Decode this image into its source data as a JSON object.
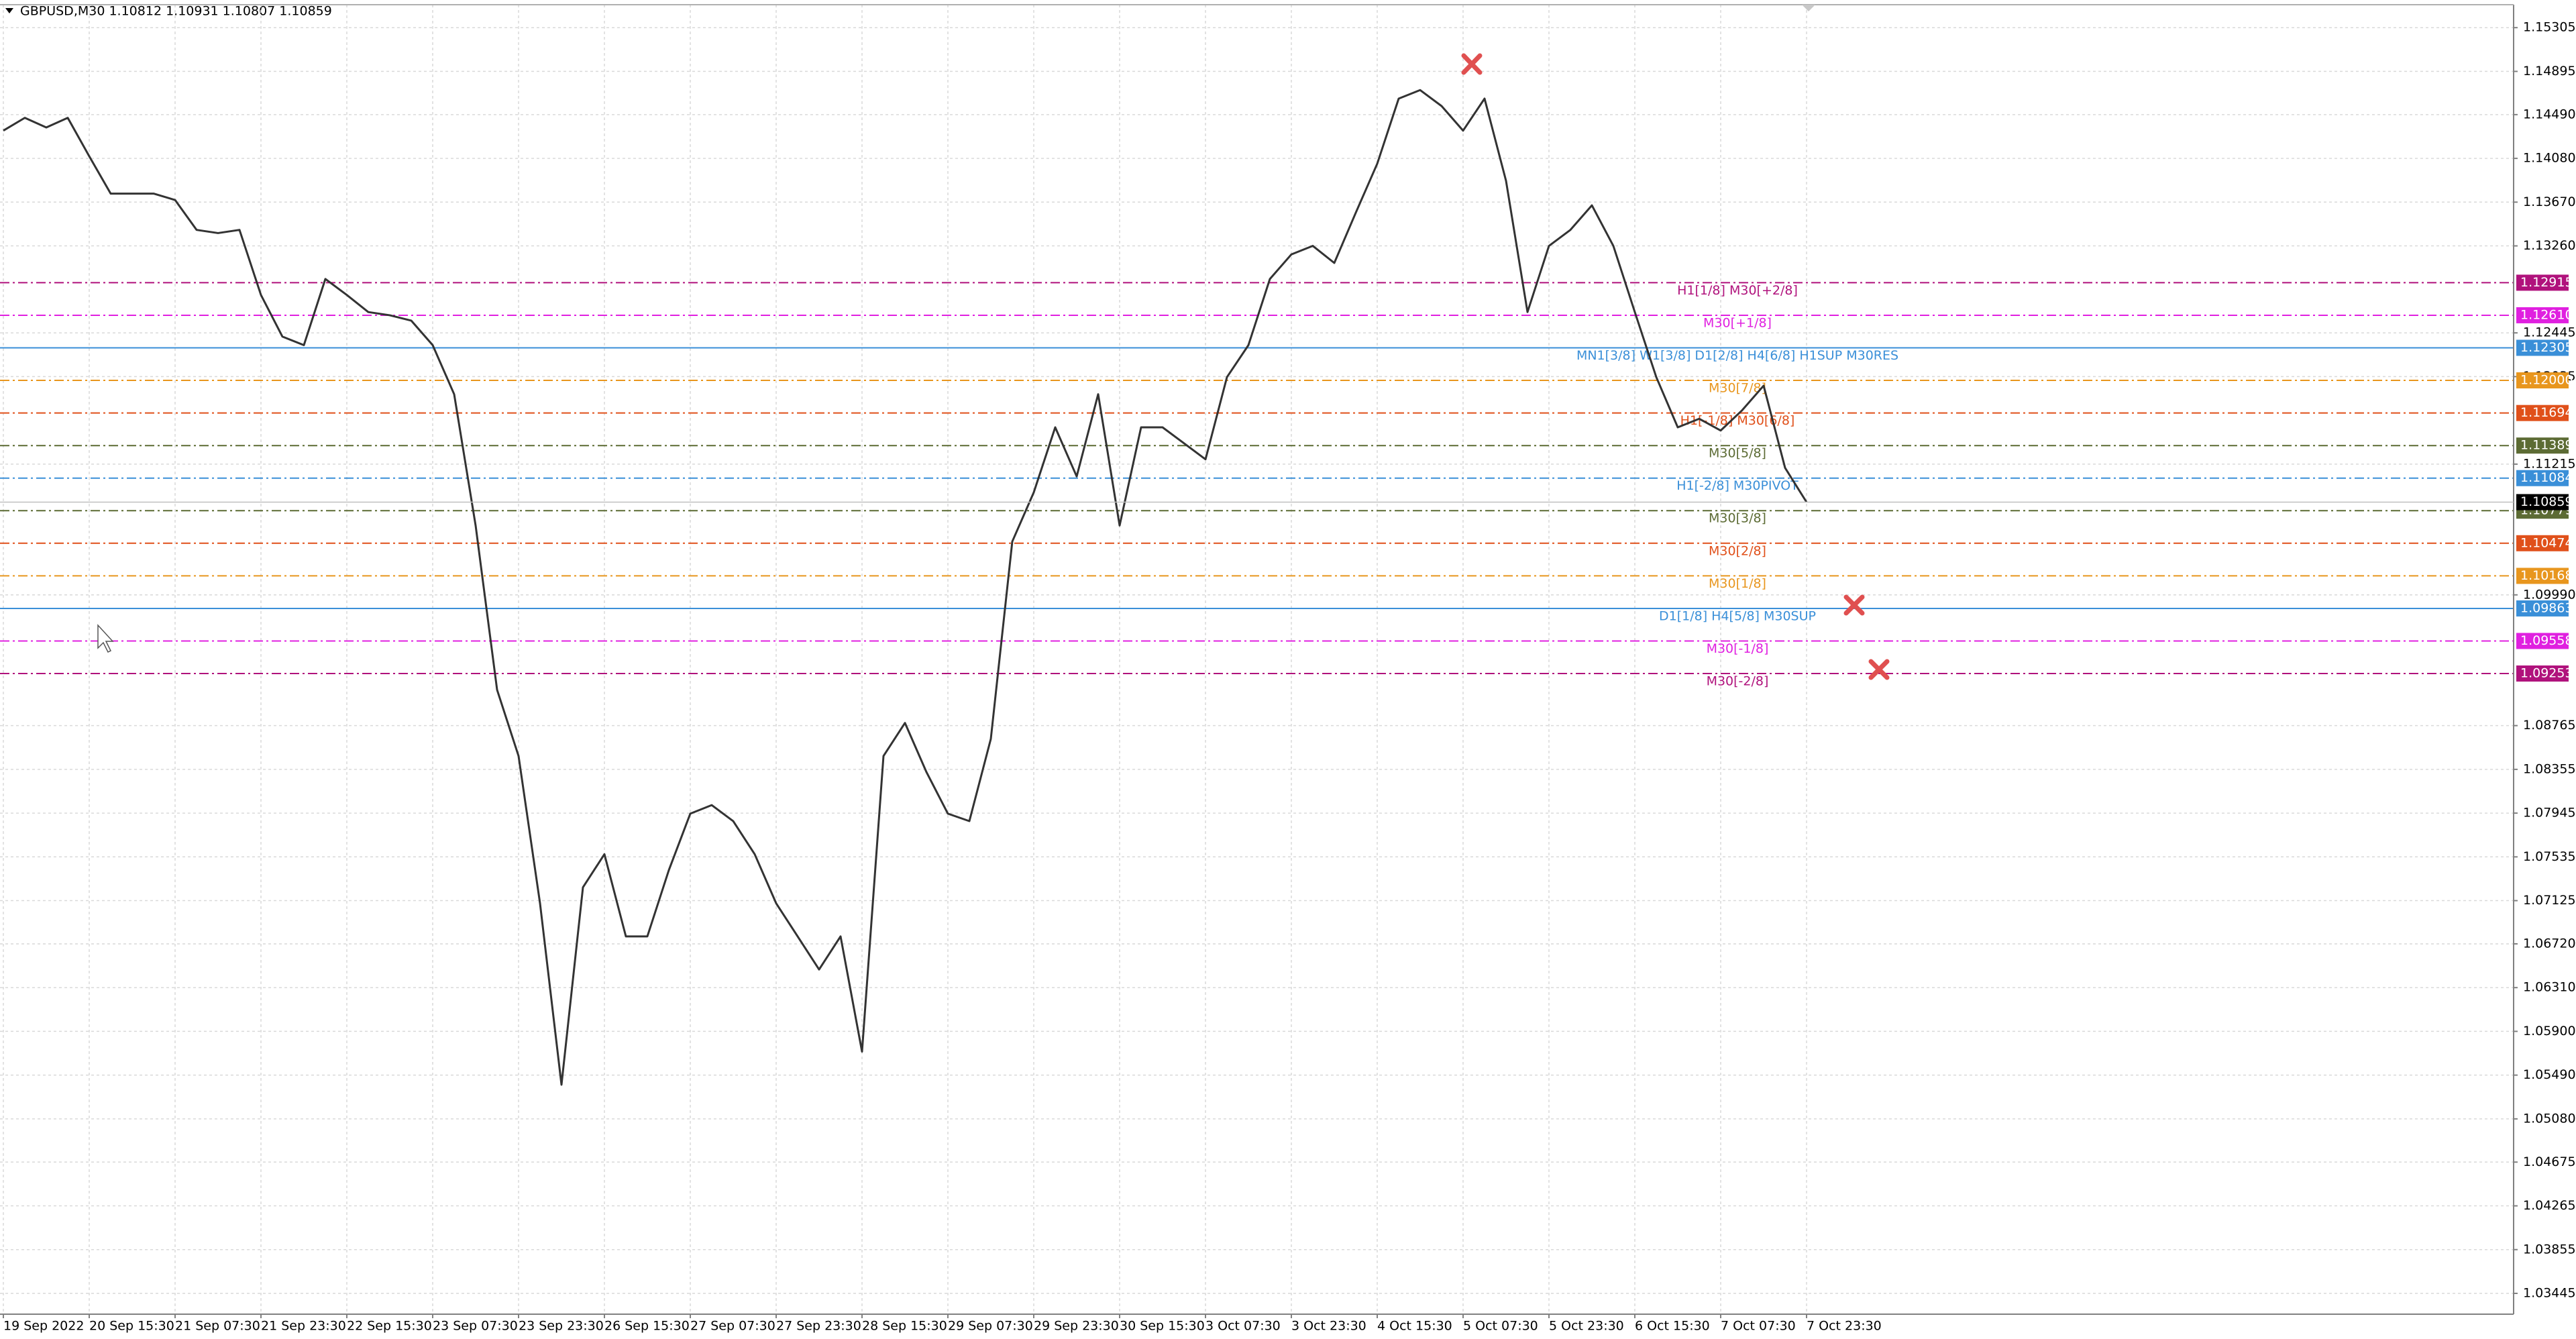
{
  "chart_data": {
    "type": "line",
    "title": "GBPUSD,M30  1.10812 1.10931 1.10807 1.10859",
    "color": "#333333",
    "grid": true,
    "categories": [
      "19 Sep 2022",
      null,
      null,
      null,
      "20 Sep 15:30",
      null,
      null,
      null,
      "21 Sep 07:30",
      null,
      null,
      null,
      "21 Sep 23:30",
      null,
      null,
      null,
      "22 Sep 15:30",
      null,
      null,
      null,
      "23 Sep 07:30",
      null,
      null,
      null,
      "23 Sep 23:30",
      null,
      null,
      null,
      "26 Sep 15:30",
      null,
      null,
      null,
      "27 Sep 07:30",
      null,
      null,
      null,
      "27 Sep 23:30",
      null,
      null,
      null,
      "28 Sep 15:30",
      null,
      null,
      null,
      "29 Sep 07:30",
      null,
      null,
      null,
      "29 Sep 23:30",
      null,
      null,
      null,
      "30 Sep 15:30",
      null,
      null,
      null,
      "3 Oct 07:30",
      null,
      null,
      null,
      "3 Oct 23:30",
      null,
      null,
      null,
      "4 Oct 15:30",
      null,
      null,
      null,
      "5 Oct 07:30",
      null,
      null,
      null,
      "5 Oct 23:30",
      null,
      null,
      null,
      "6 Oct 15:30",
      null,
      null,
      null,
      "7 Oct 07:30",
      null,
      null,
      null,
      "7 Oct 23:30"
    ],
    "values": [
      1.1434,
      1.1446,
      1.1437,
      1.1446,
      1.141,
      1.1375,
      1.1375,
      1.1375,
      1.1369,
      1.1341,
      1.1338,
      1.1341,
      1.128,
      1.1241,
      1.1233,
      1.1295,
      1.128,
      1.1264,
      1.1261,
      1.1256,
      1.1233,
      1.1187,
      1.1064,
      1.091,
      1.0848,
      1.071,
      1.054,
      1.0725,
      1.0756,
      1.0679,
      1.0679,
      1.0741,
      1.0794,
      1.0802,
      1.0787,
      1.0756,
      1.071,
      1.0679,
      1.0648,
      1.0679,
      1.0571,
      1.0848,
      1.0879,
      1.0833,
      1.0794,
      1.0787,
      1.0864,
      1.1049,
      1.1095,
      1.1156,
      1.111,
      1.1187,
      1.1064,
      1.1156,
      1.1156,
      1.1141,
      1.1126,
      1.1203,
      1.1233,
      1.1295,
      1.1318,
      1.1326,
      1.131,
      1.1357,
      1.1403,
      1.1464,
      1.1472,
      1.1457,
      1.1434,
      1.1464,
      1.1387,
      1.1264,
      1.1326,
      1.1341,
      1.1364,
      1.1326,
      1.1264,
      1.1203,
      1.1156,
      1.1164,
      1.1153,
      1.1172,
      1.1195,
      1.1118,
      1.10859
    ],
    "ylim": [
      1.0325,
      1.1552
    ],
    "yticks": [
      1.15305,
      1.14895,
      {
        "value": 1.1449,
        "label": "1.14490"
      },
      {
        "value": 1.1408,
        "label": "1.14080"
      },
      {
        "value": 1.1367,
        "label": "1.13670"
      },
      {
        "value": 1.1326,
        "label": "1.13260"
      },
      1.12445,
      1.12035,
      1.11215,
      {
        "value": 1.0999,
        "label": "1.09990"
      },
      1.08765,
      1.08355,
      1.07945,
      1.07535,
      1.07125,
      {
        "value": 1.0672,
        "label": "1.06720"
      },
      {
        "value": 1.0631,
        "label": "1.06310"
      },
      {
        "value": 1.059,
        "label": "1.05900"
      },
      {
        "value": 1.0549,
        "label": "1.05490"
      },
      {
        "value": 1.0508,
        "label": "1.05080"
      },
      1.04675,
      1.04265,
      1.03855,
      1.03445
    ],
    "levels": [
      {
        "value": 1.12915,
        "label": "H1[1/8] M30[+2/8]",
        "color": "#b0127c",
        "style": "dashdot"
      },
      {
        "value": 1.1261,
        "value_label": "1.12610",
        "label": "M30[+1/8]",
        "color": "#e020e0",
        "style": "dashdot"
      },
      {
        "value": 1.12305,
        "label": "MN1[3/8] W1[3/8] D1[2/8] H4[6/8] H1SUP M30RES",
        "color": "#3a8fd8",
        "style": "solid"
      },
      {
        "value": 1.12,
        "value_label": "1.12000",
        "label": "M30[7/8]",
        "color": "#e8961e",
        "style": "dashdot"
      },
      {
        "value": 1.11694,
        "label": "H1[-1/8] M30[6/8]",
        "color": "#e0501a",
        "style": "dashdot"
      },
      {
        "value": 1.11389,
        "label": "M30[5/8]",
        "color": "#5c6b34",
        "style": "dashdot"
      },
      {
        "value": 1.11084,
        "label": "H1[-2/8] M30PIVOT",
        "color": "#3a8fd8",
        "style": "dashdot"
      },
      {
        "value": 1.10779,
        "label": "M30[3/8]",
        "color": "#5c6b34",
        "style": "dashdot"
      },
      {
        "value": 1.10474,
        "label": "M30[2/8]",
        "color": "#e0501a",
        "style": "dashdot"
      },
      {
        "value": 1.10168,
        "label": "M30[1/8]",
        "color": "#e8961e",
        "style": "dashdot"
      },
      {
        "value": 1.09863,
        "label": "D1[1/8] H4[5/8] M30SUP",
        "color": "#3a8fd8",
        "style": "solid"
      },
      {
        "value": 1.09558,
        "label": "M30[-1/8]",
        "color": "#e020e0",
        "style": "dashdot"
      },
      {
        "value": 1.09253,
        "label": "M30[-2/8]",
        "color": "#b0127c",
        "style": "dashdot"
      }
    ]
  }
}
